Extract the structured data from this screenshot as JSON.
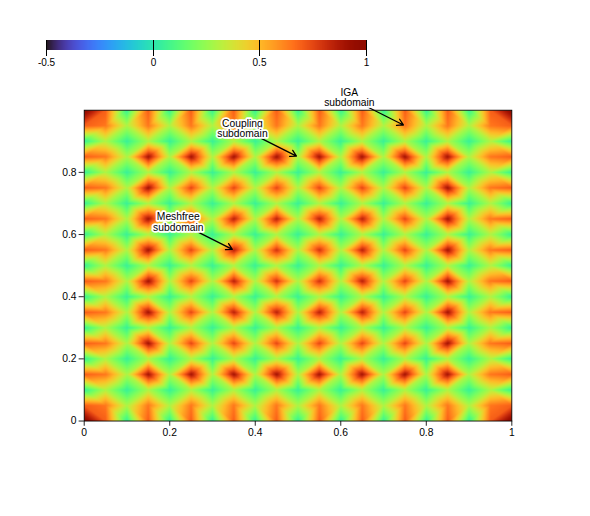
{
  "chart_data": {
    "type": "surface",
    "x": [
      0,
      0.05,
      0.1,
      0.15,
      0.2,
      0.25,
      0.3,
      0.35,
      0.4,
      0.45,
      0.5,
      0.55,
      0.6,
      0.65,
      0.7,
      0.75,
      0.8,
      0.85,
      0.9,
      0.95,
      1
    ],
    "y": [
      0,
      0.05,
      0.1,
      0.15,
      0.2,
      0.25,
      0.3,
      0.35,
      0.4,
      0.45,
      0.5,
      0.55,
      0.6,
      0.65,
      0.7,
      0.75,
      0.8,
      0.85,
      0.9,
      0.95,
      1
    ],
    "z": [
      [
        1,
        0.7,
        0.05,
        0.7,
        0.05,
        0.7,
        0.05,
        0.7,
        0.05,
        0.7,
        0.05,
        0.7,
        0.05,
        0.7,
        0.05,
        0.7,
        0.05,
        0.7,
        0.05,
        0.7,
        1
      ],
      [
        0.7,
        0.65,
        0.3,
        0.65,
        0.3,
        0.65,
        0.3,
        0.65,
        0.3,
        0.65,
        0.3,
        0.65,
        0.3,
        0.65,
        0.3,
        0.65,
        0.3,
        0.65,
        0.3,
        0.65,
        0.7
      ],
      [
        0.05,
        0.3,
        0.05,
        0.3,
        0.05,
        0.3,
        0.05,
        0.3,
        0.05,
        0.3,
        0.05,
        0.3,
        0.05,
        0.3,
        0.05,
        0.3,
        0.05,
        0.3,
        0.05,
        0.3,
        0.05
      ],
      [
        0.7,
        0.65,
        0.3,
        0.9,
        0.3,
        0.9,
        0.3,
        0.9,
        0.3,
        0.9,
        0.3,
        0.9,
        0.3,
        0.9,
        0.3,
        0.9,
        0.3,
        0.9,
        0.3,
        0.65,
        0.7
      ],
      [
        0.05,
        0.3,
        0.05,
        0.3,
        0.05,
        0.3,
        0.05,
        0.3,
        0.05,
        0.3,
        0.05,
        0.3,
        0.05,
        0.3,
        0.05,
        0.3,
        0.05,
        0.3,
        0.05,
        0.3,
        0.05
      ],
      [
        0.7,
        0.65,
        0.3,
        0.9,
        0.3,
        0.75,
        0.3,
        0.75,
        0.3,
        0.75,
        0.3,
        0.75,
        0.3,
        0.75,
        0.3,
        0.75,
        0.3,
        0.9,
        0.3,
        0.65,
        0.7
      ],
      [
        0.05,
        0.3,
        0.05,
        0.3,
        0.05,
        0.3,
        0.05,
        0.3,
        0.05,
        0.3,
        0.05,
        0.3,
        0.05,
        0.3,
        0.05,
        0.3,
        0.05,
        0.3,
        0.05,
        0.3,
        0.05
      ],
      [
        0.7,
        0.65,
        0.3,
        0.9,
        0.3,
        0.75,
        0.3,
        0.85,
        0.3,
        0.85,
        0.3,
        0.85,
        0.3,
        0.85,
        0.3,
        0.75,
        0.3,
        0.9,
        0.3,
        0.65,
        0.7
      ],
      [
        0.05,
        0.3,
        0.05,
        0.3,
        0.05,
        0.3,
        0.05,
        0.3,
        0.05,
        0.3,
        0.05,
        0.3,
        0.05,
        0.3,
        0.05,
        0.3,
        0.05,
        0.3,
        0.05,
        0.3,
        0.05
      ],
      [
        0.7,
        0.65,
        0.3,
        0.9,
        0.3,
        0.75,
        0.3,
        0.85,
        0.3,
        0.8,
        0.3,
        0.8,
        0.3,
        0.85,
        0.3,
        0.75,
        0.3,
        0.9,
        0.3,
        0.65,
        0.7
      ],
      [
        0.05,
        0.3,
        0.05,
        0.3,
        0.05,
        0.3,
        0.05,
        0.3,
        0.05,
        0.3,
        0.05,
        0.3,
        0.05,
        0.3,
        0.05,
        0.3,
        0.05,
        0.3,
        0.05,
        0.3,
        0.05
      ],
      [
        0.7,
        0.65,
        0.3,
        0.9,
        0.3,
        0.75,
        0.3,
        0.85,
        0.3,
        0.8,
        0.3,
        0.8,
        0.3,
        0.85,
        0.3,
        0.75,
        0.3,
        0.9,
        0.3,
        0.65,
        0.7
      ],
      [
        0.05,
        0.3,
        0.05,
        0.3,
        0.05,
        0.3,
        0.05,
        0.3,
        0.05,
        0.3,
        0.05,
        0.3,
        0.05,
        0.3,
        0.05,
        0.3,
        0.05,
        0.3,
        0.05,
        0.3,
        0.05
      ],
      [
        0.7,
        0.65,
        0.3,
        0.9,
        0.3,
        0.75,
        0.3,
        0.85,
        0.3,
        0.85,
        0.3,
        0.85,
        0.3,
        0.85,
        0.3,
        0.75,
        0.3,
        0.9,
        0.3,
        0.65,
        0.7
      ],
      [
        0.05,
        0.3,
        0.05,
        0.3,
        0.05,
        0.3,
        0.05,
        0.3,
        0.05,
        0.3,
        0.05,
        0.3,
        0.05,
        0.3,
        0.05,
        0.3,
        0.05,
        0.3,
        0.05,
        0.3,
        0.05
      ],
      [
        0.7,
        0.65,
        0.3,
        0.9,
        0.3,
        0.75,
        0.3,
        0.75,
        0.3,
        0.75,
        0.3,
        0.75,
        0.3,
        0.75,
        0.3,
        0.75,
        0.3,
        0.9,
        0.3,
        0.65,
        0.7
      ],
      [
        0.05,
        0.3,
        0.05,
        0.3,
        0.05,
        0.3,
        0.05,
        0.3,
        0.05,
        0.3,
        0.05,
        0.3,
        0.05,
        0.3,
        0.05,
        0.3,
        0.05,
        0.3,
        0.05,
        0.3,
        0.05
      ],
      [
        0.7,
        0.65,
        0.3,
        0.9,
        0.3,
        0.9,
        0.3,
        0.9,
        0.3,
        0.9,
        0.3,
        0.9,
        0.3,
        0.9,
        0.3,
        0.9,
        0.3,
        0.9,
        0.3,
        0.65,
        0.7
      ],
      [
        0.05,
        0.3,
        0.05,
        0.3,
        0.05,
        0.3,
        0.05,
        0.3,
        0.05,
        0.3,
        0.05,
        0.3,
        0.05,
        0.3,
        0.05,
        0.3,
        0.05,
        0.3,
        0.05,
        0.3,
        0.05
      ],
      [
        0.7,
        0.65,
        0.3,
        0.65,
        0.3,
        0.65,
        0.3,
        0.65,
        0.3,
        0.65,
        0.3,
        0.65,
        0.3,
        0.65,
        0.3,
        0.65,
        0.3,
        0.65,
        0.3,
        0.65,
        0.7
      ],
      [
        1,
        0.7,
        0.05,
        0.7,
        0.05,
        0.7,
        0.05,
        0.7,
        0.05,
        0.7,
        0.05,
        0.7,
        0.05,
        0.7,
        0.05,
        0.7,
        0.05,
        0.7,
        0.05,
        0.7,
        1
      ]
    ],
    "xlim": [
      0,
      1
    ],
    "ylim": [
      0,
      1
    ],
    "zlim": [
      -0.5,
      1
    ],
    "xticks": [
      0,
      0.2,
      0.4,
      0.6,
      0.8,
      1
    ],
    "yticks": [
      0,
      0.2,
      0.4,
      0.6,
      0.8
    ],
    "zticks": [
      -0.5,
      0,
      0.5,
      1
    ],
    "annotations": [
      {
        "text": "IGA subdomain",
        "x": 0.75,
        "y": 0.95
      },
      {
        "text": "Coupling subdomain",
        "x": 0.5,
        "y": 0.85
      },
      {
        "text": "Meshfree subdomain",
        "x": 0.35,
        "y": 0.55
      }
    ]
  }
}
